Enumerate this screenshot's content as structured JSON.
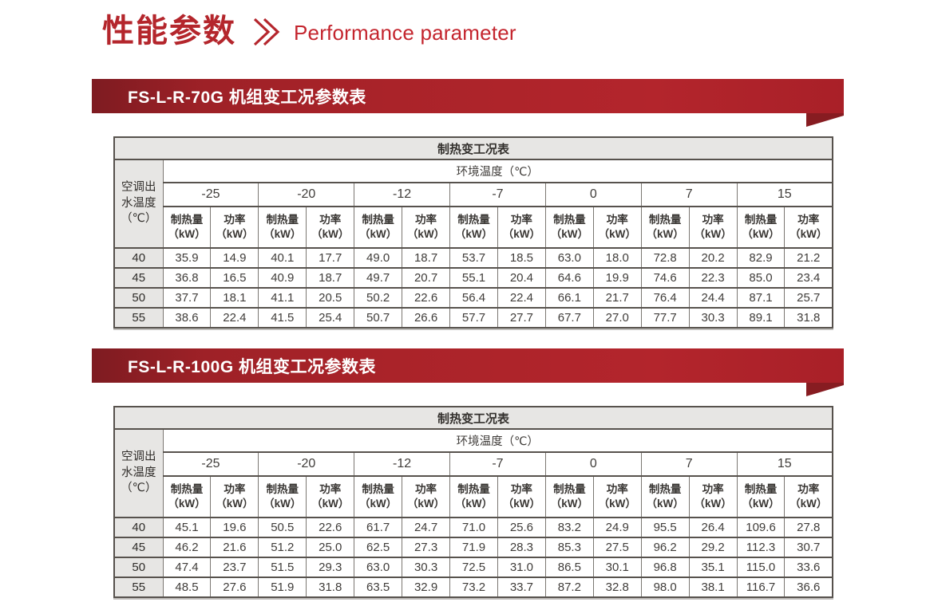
{
  "header": {
    "title_zh": "性能参数",
    "title_en": "Performance parameter",
    "accent_color": "#b4262c",
    "banner_red_dark": "#7e1b21",
    "banner_red_bright": "#b3252c"
  },
  "tables": [
    {
      "banner": "FS-L-R-70G 机组变工况参数表",
      "condition_title": "制热变工况表",
      "ambient_header": "环境温度（℃）",
      "outlet_header_lines": [
        "空调出",
        "水温度",
        "（℃）"
      ],
      "ambient_temps": [
        "-25",
        "-20",
        "-12",
        "-7",
        "0",
        "7",
        "15"
      ],
      "capacity_header_lines": [
        "制热量",
        "（kW）"
      ],
      "power_header_lines": [
        "功率",
        "（kW）"
      ],
      "rows": [
        {
          "outlet_temp": "40",
          "values": [
            "35.9",
            "14.9",
            "40.1",
            "17.7",
            "49.0",
            "18.7",
            "53.7",
            "18.5",
            "63.0",
            "18.0",
            "72.8",
            "20.2",
            "82.9",
            "21.2"
          ]
        },
        {
          "outlet_temp": "45",
          "values": [
            "36.8",
            "16.5",
            "40.9",
            "18.7",
            "49.7",
            "20.7",
            "55.1",
            "20.4",
            "64.6",
            "19.9",
            "74.6",
            "22.3",
            "85.0",
            "23.4"
          ]
        },
        {
          "outlet_temp": "50",
          "values": [
            "37.7",
            "18.1",
            "41.1",
            "20.5",
            "50.2",
            "22.6",
            "56.4",
            "22.4",
            "66.1",
            "21.7",
            "76.4",
            "24.4",
            "87.1",
            "25.7"
          ]
        },
        {
          "outlet_temp": "55",
          "values": [
            "38.6",
            "22.4",
            "41.5",
            "25.4",
            "50.7",
            "26.6",
            "57.7",
            "27.7",
            "67.7",
            "27.0",
            "77.7",
            "30.3",
            "89.1",
            "31.8"
          ]
        }
      ]
    },
    {
      "banner": "FS-L-R-100G 机组变工况参数表",
      "condition_title": "制热变工况表",
      "ambient_header": "环境温度（℃）",
      "outlet_header_lines": [
        "空调出",
        "水温度",
        "（℃）"
      ],
      "ambient_temps": [
        "-25",
        "-20",
        "-12",
        "-7",
        "0",
        "7",
        "15"
      ],
      "capacity_header_lines": [
        "制热量",
        "（kW）"
      ],
      "power_header_lines": [
        "功率",
        "（kW）"
      ],
      "rows": [
        {
          "outlet_temp": "40",
          "values": [
            "45.1",
            "19.6",
            "50.5",
            "22.6",
            "61.7",
            "24.7",
            "71.0",
            "25.6",
            "83.2",
            "24.9",
            "95.5",
            "26.4",
            "109.6",
            "27.8"
          ]
        },
        {
          "outlet_temp": "45",
          "values": [
            "46.2",
            "21.6",
            "51.2",
            "25.0",
            "62.5",
            "27.3",
            "71.9",
            "28.3",
            "85.3",
            "27.5",
            "96.2",
            "29.2",
            "112.3",
            "30.7"
          ]
        },
        {
          "outlet_temp": "50",
          "values": [
            "47.4",
            "23.7",
            "51.5",
            "29.3",
            "63.0",
            "30.3",
            "72.5",
            "31.0",
            "86.5",
            "30.1",
            "96.8",
            "35.1",
            "115.0",
            "33.6"
          ]
        },
        {
          "outlet_temp": "55",
          "values": [
            "48.5",
            "27.6",
            "51.9",
            "31.8",
            "63.5",
            "32.9",
            "73.2",
            "33.7",
            "87.2",
            "32.8",
            "98.0",
            "38.1",
            "116.7",
            "36.6"
          ]
        }
      ]
    }
  ]
}
